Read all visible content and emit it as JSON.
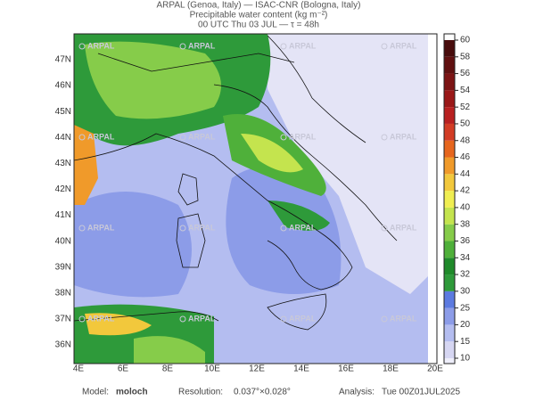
{
  "header": {
    "line1": "ARPAL (Genoa, Italy)  —  ISAC-CNR (Bologna, Italy)",
    "line2": "Precipitable water content (kg m⁻²)",
    "line3": "00 UTC Thu 03 JUL  —  τ = 48h"
  },
  "map": {
    "lat_labels": [
      "47N",
      "46N",
      "45N",
      "44N",
      "43N",
      "42N",
      "41N",
      "40N",
      "39N",
      "38N",
      "37N",
      "36N"
    ],
    "lon_labels": [
      "4E",
      "6E",
      "8E",
      "10E",
      "12E",
      "14E",
      "16E",
      "18E",
      "20E"
    ],
    "watermarks": [
      "ARPAL",
      "ARPAL",
      "ARPAL",
      "ARPAL",
      "ARPAL",
      "ARPAL",
      "ARPAL",
      "ARPAL",
      "ARPAL",
      "ARPAL",
      "ARPAL",
      "ARPAL",
      "ARPAL",
      "ARPAL",
      "ARPAL",
      "ARPAL"
    ]
  },
  "colorbar": {
    "ticks": [
      10,
      15,
      20,
      25,
      30,
      32,
      34,
      36,
      38,
      40,
      42,
      44,
      46,
      48,
      50,
      52,
      54,
      56,
      58,
      60
    ],
    "colors": [
      "#d6d6f2",
      "#b4bdf0",
      "#8c9ce8",
      "#5c7ae0",
      "#2e9a3a",
      "#1f8a2a",
      "#4fb03a",
      "#86cc4a",
      "#c4e44e",
      "#f0ee52",
      "#f2c83c",
      "#f09a2a",
      "#e6661e",
      "#d23c24",
      "#b82020",
      "#9a1818",
      "#7c1414",
      "#601010",
      "#480c0c"
    ]
  },
  "footer": {
    "model_label": "Model:",
    "model": "moloch",
    "resolution_label": "Resolution:",
    "resolution": "0.037°×0.028°",
    "analysis_label": "Analysis:",
    "analysis": "Tue 00Z01JUL2025"
  }
}
